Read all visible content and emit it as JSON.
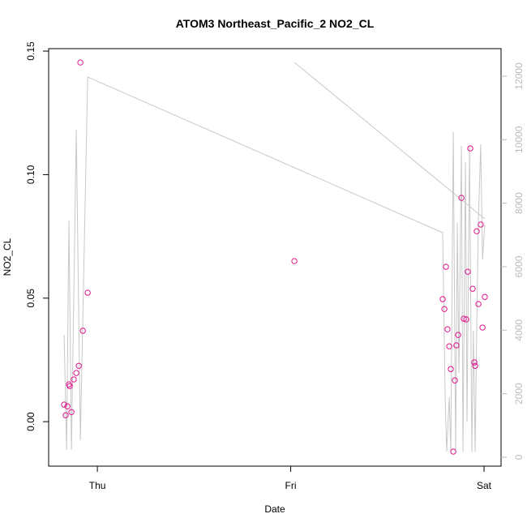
{
  "chart_data": {
    "type": "scatter",
    "title": "ATOM3 Northeast_Pacific_2 NO2_CL",
    "x_label": "Date",
    "y_label": "NO2_CL",
    "xlim": [
      -0.252,
      2.088
    ],
    "xticks": [
      {
        "value": 0,
        "label": "Thu"
      },
      {
        "value": 1,
        "label": "Fri"
      },
      {
        "value": 2,
        "label": "Sat"
      }
    ],
    "ylim": [
      -0.018,
      0.151
    ],
    "yticks": [
      {
        "value": 0,
        "label": "0.00"
      },
      0.05,
      {
        "value": 0.1,
        "label": "0.10"
      },
      0.15
    ],
    "y2lim": [
      -281,
      12867
    ],
    "y2ticks": [
      0,
      2000,
      4000,
      6000,
      8000,
      10000,
      12000
    ],
    "series": [
      {
        "type": "scatter",
        "color": "#e0148c",
        "x": [
          -0.172,
          -0.164,
          -0.155,
          -0.147,
          -0.143,
          -0.134,
          -0.122,
          -0.109,
          -0.096,
          -0.088,
          -0.075,
          -0.05,
          1.019,
          1.786,
          1.795,
          1.803,
          1.811,
          1.82,
          1.828,
          1.841,
          1.849,
          1.857,
          1.866,
          1.883,
          1.895,
          1.908,
          1.916,
          1.929,
          1.941,
          1.95,
          1.954,
          1.962,
          1.971,
          1.983,
          1.992,
          2.004
        ],
        "values": [
          0.0069,
          0.0026,
          0.0062,
          0.0151,
          0.0144,
          0.0039,
          0.0171,
          0.0197,
          0.0226,
          0.1454,
          0.0368,
          0.0522,
          0.065,
          0.0496,
          0.0456,
          0.0627,
          0.0374,
          0.0305,
          0.0213,
          -0.0121,
          0.0167,
          0.0309,
          0.0351,
          0.0906,
          0.0417,
          0.0414,
          0.0607,
          0.1106,
          0.0538,
          0.024,
          0.0226,
          0.0771,
          0.0476,
          0.0798,
          0.0381,
          0.0505
        ]
      },
      {
        "type": "line",
        "axis": "y2",
        "color": "#c8c8c8",
        "x": [
          -0.172,
          -0.159,
          -0.147,
          -0.134,
          -0.109,
          -0.088,
          -0.05,
          1.786,
          1.799,
          1.807,
          1.82,
          1.828,
          1.841,
          1.853,
          1.862,
          1.87,
          1.883,
          1.891,
          1.904,
          1.912,
          1.925,
          1.937,
          1.945,
          1.954,
          1.962,
          1.971,
          1.983,
          1.992,
          2.004,
          null,
          1.019,
          2.004
        ],
        "values": [
          3855,
          230,
          7455,
          230,
          10314,
          536,
          11974,
          7072,
          1838,
          179,
          1889,
          179,
          10238,
          179,
          7378,
          2655,
          9803,
          179,
          9293,
          1123,
          9803,
          179,
          3983,
          179,
          4059,
          7506,
          9854,
          6229,
          7327,
          null,
          12434,
          7506
        ]
      }
    ]
  }
}
